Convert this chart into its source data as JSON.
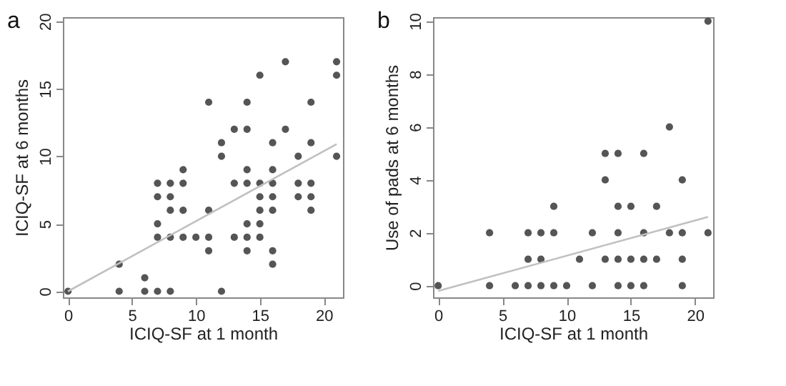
{
  "chart_data": [
    {
      "type": "scatter",
      "title": "a",
      "xlabel": "ICIQ-SF at 1 month",
      "ylabel": "ICIQ-SF at 6 months",
      "xlim": [
        -0.4,
        21.5
      ],
      "ylim": [
        -0.45,
        20.3
      ],
      "xticks": [
        0,
        5,
        10,
        15,
        20
      ],
      "yticks": [
        0,
        5,
        10,
        15,
        20
      ],
      "grid": false,
      "series": [
        {
          "type": "scatter",
          "marker": "circle",
          "color": "#555555",
          "x": [
            11,
            12,
            12,
            13,
            14,
            14,
            14,
            15,
            16,
            16,
            17,
            17,
            18,
            19,
            19,
            21,
            21,
            21,
            9,
            7,
            8,
            9,
            13,
            14,
            15,
            16,
            18,
            19,
            7,
            8,
            15,
            16,
            18,
            19,
            8,
            9,
            11,
            15,
            16,
            19,
            7,
            14,
            15,
            7,
            8,
            9,
            10,
            11,
            13,
            14,
            15,
            11,
            14,
            16,
            4,
            16,
            6,
            0,
            4,
            6,
            7,
            8,
            12
          ],
          "values": [
            14,
            11,
            10,
            12,
            14,
            12,
            9,
            16,
            11,
            9,
            17,
            12,
            10,
            14,
            11,
            17,
            16,
            10,
            9,
            8,
            8,
            8,
            8,
            8,
            8,
            8,
            8,
            8,
            7,
            7,
            7,
            7,
            7,
            7,
            6,
            6,
            6,
            6,
            6,
            6,
            5,
            5,
            5,
            4,
            4,
            4,
            4,
            4,
            4,
            4,
            4,
            3,
            3,
            3,
            2,
            2,
            1,
            0,
            0,
            0,
            0,
            0,
            0
          ]
        },
        {
          "type": "line",
          "color": "#c0c0c0",
          "x": [
            0,
            21
          ],
          "values": [
            0,
            10.9
          ]
        }
      ]
    },
    {
      "type": "scatter",
      "title": "b",
      "xlabel": "ICIQ-SF at 1 month",
      "ylabel": "Use of pads at 6 months",
      "xlim": [
        -0.4,
        21.4
      ],
      "ylim": [
        -0.44,
        10.15
      ],
      "xticks": [
        0,
        5,
        10,
        15,
        20
      ],
      "yticks": [
        0,
        2,
        4,
        6,
        8,
        10
      ],
      "grid": false,
      "series": [
        {
          "type": "scatter",
          "marker": "circle",
          "color": "#555555",
          "x": [
            21,
            18,
            13,
            14,
            16,
            13,
            19,
            9,
            14,
            15,
            17,
            4,
            7,
            8,
            9,
            12,
            14,
            16,
            18,
            19,
            21,
            7,
            8,
            11,
            13,
            14,
            15,
            16,
            17,
            19,
            0,
            4,
            6,
            7,
            8,
            9,
            10,
            12,
            14,
            15,
            16,
            19
          ],
          "values": [
            10,
            6,
            5,
            5,
            5,
            4,
            4,
            3,
            3,
            3,
            3,
            2,
            2,
            2,
            2,
            2,
            2,
            2,
            2,
            2,
            2,
            1,
            1,
            1,
            1,
            1,
            1,
            1,
            1,
            1,
            0,
            0,
            0,
            0,
            0,
            0,
            0,
            0,
            0,
            0,
            0,
            0
          ]
        },
        {
          "type": "line",
          "color": "#c0c0c0",
          "x": [
            0,
            21
          ],
          "values": [
            -0.2,
            2.6
          ]
        }
      ]
    }
  ]
}
